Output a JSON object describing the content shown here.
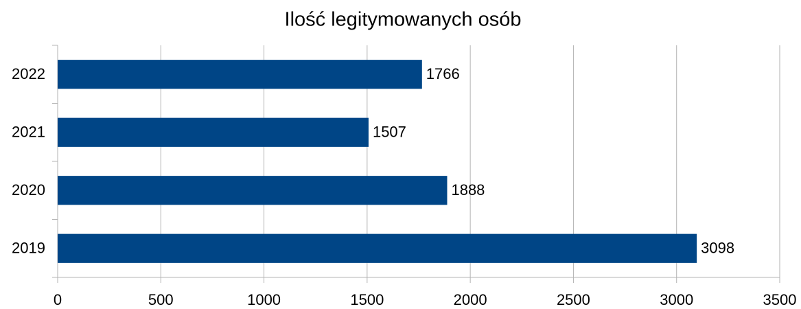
{
  "chart_data": {
    "type": "hbar",
    "title": "Ilość legitymowanych osób",
    "categories": [
      "2019",
      "2020",
      "2021",
      "2022"
    ],
    "values": [
      3098,
      1888,
      1507,
      1766
    ],
    "color": "#004586",
    "xlim": [
      0,
      3500
    ],
    "xticks": [
      0,
      500,
      1000,
      1500,
      2000,
      2500,
      3000,
      3500
    ],
    "grid": true
  }
}
